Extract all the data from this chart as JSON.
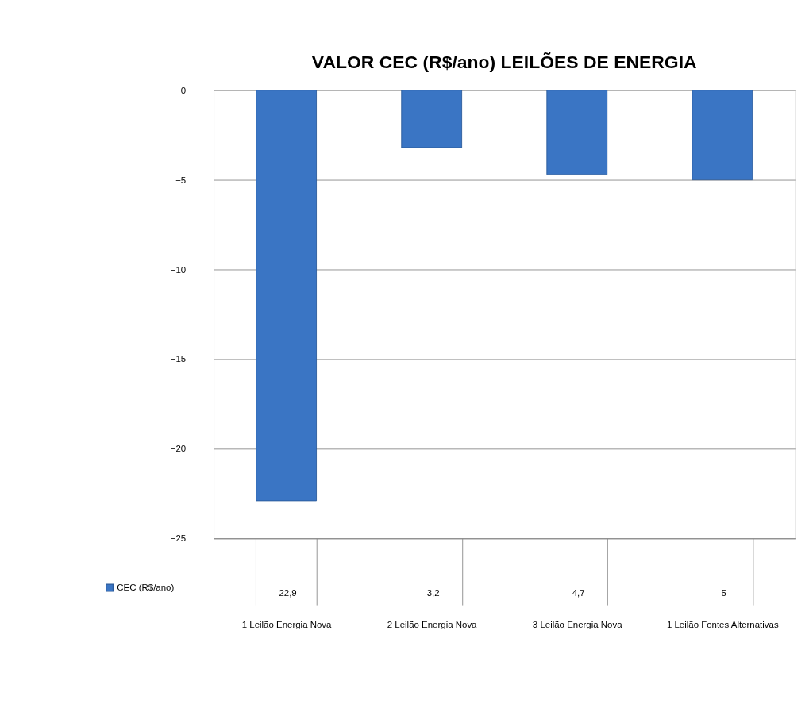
{
  "chart_data": {
    "type": "bar",
    "title": "VALOR  CEC (R$/ano) LEILÕES DE ENERGIA",
    "categories": [
      "1 Leilão Energia Nova",
      "2 Leilão Energia Nova",
      "3 Leilão Energia Nova",
      "1 Leilão Fontes Alternativas"
    ],
    "series": [
      {
        "name": "CEC (R$/ano)",
        "color": "#3a75c4",
        "values": [
          -22.9,
          -3.2,
          -4.7,
          -5
        ],
        "value_labels": [
          "-22,9",
          "-3,2",
          "-4,7",
          "-5"
        ]
      }
    ],
    "ylim": [
      -25,
      0
    ],
    "yticks": [
      -25,
      -20,
      -15,
      -10,
      -5,
      0
    ],
    "grid": "y",
    "legend": "bottom left"
  }
}
